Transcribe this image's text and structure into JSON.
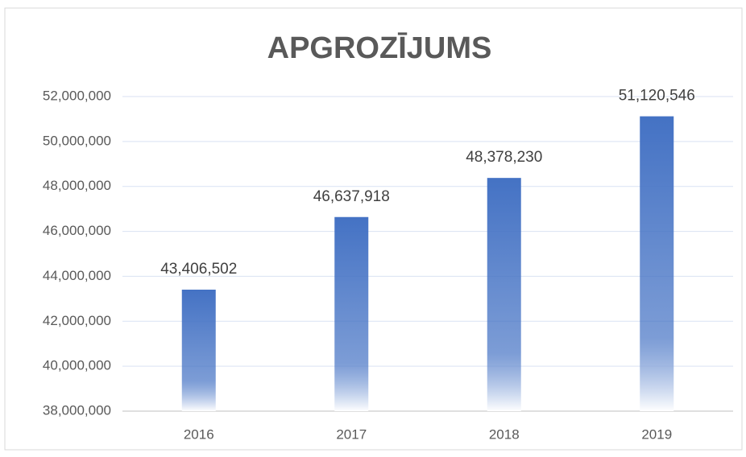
{
  "chart_data": {
    "type": "bar",
    "title": "APGROZĪJUMS",
    "categories": [
      "2016",
      "2017",
      "2018",
      "2019"
    ],
    "values": [
      43406502,
      46637918,
      48378230,
      51120546
    ],
    "value_labels": [
      "43,406,502",
      "46,637,918",
      "48,378,230",
      "51,120,546"
    ],
    "color": "#4472c4",
    "ylim": [
      38000000,
      52000000
    ],
    "yticks": [
      {
        "value": 38000000,
        "label": "38,000,000"
      },
      {
        "value": 40000000,
        "label": "40,000,000"
      },
      {
        "value": 42000000,
        "label": "42,000,000"
      },
      {
        "value": 44000000,
        "label": "44,000,000"
      },
      {
        "value": 46000000,
        "label": "46,000,000"
      },
      {
        "value": 48000000,
        "label": "48,000,000"
      },
      {
        "value": 50000000,
        "label": "50,000,000"
      },
      {
        "value": 52000000,
        "label": "52,000,000"
      }
    ],
    "grid": true
  }
}
